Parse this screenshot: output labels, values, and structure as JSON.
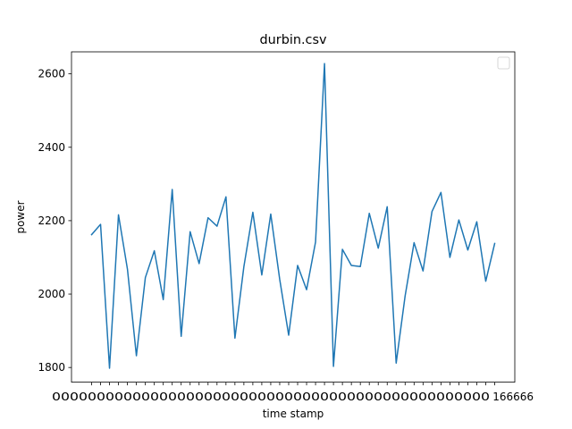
{
  "chart_data": {
    "type": "line",
    "title": "durbin.csv",
    "xlabel": "time stamp",
    "ylabel": "power",
    "ylim": [
      1760,
      2660
    ],
    "yticks": [
      1800,
      2000,
      2200,
      2400,
      2600
    ],
    "xtick_text": "0000000000000000000000000000000000000000000000000",
    "xtick_last": "166666",
    "legend_position": "upper right",
    "grid": false,
    "colors": {
      "line": "#1f77b4"
    },
    "series": [
      {
        "values": [
          2162,
          2190,
          1798,
          2216,
          2068,
          1832,
          2045,
          2118,
          1985,
          2285,
          1885,
          2170,
          2083,
          2208,
          2185,
          2265,
          1880,
          2075,
          2223,
          2052,
          2218,
          2040,
          1888,
          2078,
          2012,
          2142,
          2628,
          1803,
          2122,
          2078,
          2075,
          2220,
          2125,
          2238,
          1812,
          1995,
          2140,
          2063,
          2225,
          2277,
          2100,
          2202,
          2120,
          2197,
          2035,
          2138
        ]
      }
    ]
  }
}
